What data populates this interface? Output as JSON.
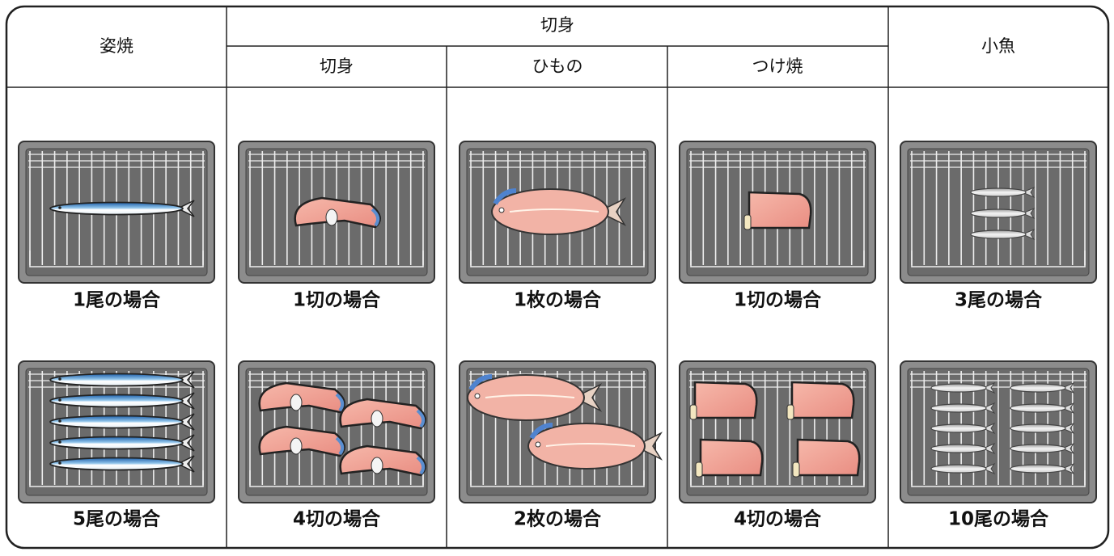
{
  "table": {
    "headers": {
      "groups": [
        "姿焼",
        "切身",
        "小魚"
      ],
      "sub": [
        "切身",
        "ひもの",
        "つけ焼"
      ]
    },
    "cells": [
      [
        "1尾の場合",
        "5尾の場合"
      ],
      [
        "1切の場合",
        "4切の場合"
      ],
      [
        "1枚の場合",
        "2枚の場合"
      ],
      [
        "1切の場合",
        "4切の場合"
      ],
      [
        "3尾の場合",
        "10尾の場合"
      ]
    ]
  }
}
